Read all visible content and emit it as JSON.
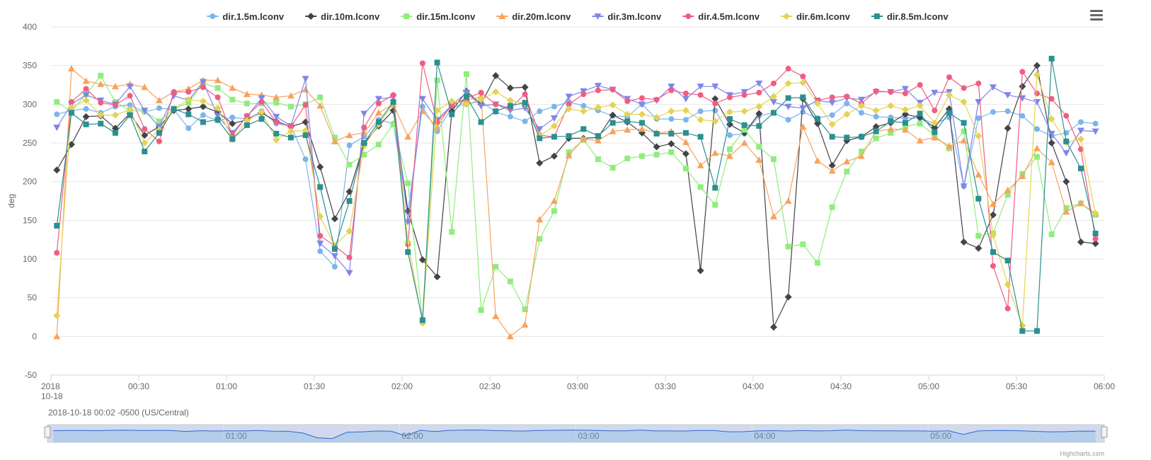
{
  "chart_data": {
    "type": "line",
    "title": "",
    "xlabel": "",
    "ylabel": "deg",
    "ylim": [
      -50,
      400
    ],
    "yticks": [
      -50,
      0,
      50,
      100,
      150,
      200,
      250,
      300,
      350,
      400
    ],
    "grid": true,
    "legend_position": "top-center",
    "x_start": "2018-10-18 00:00",
    "x_end": "2018-10-18 06:00",
    "x_ticks": [
      {
        "t": "00:00",
        "label": "2018",
        "label2": "10-18"
      },
      {
        "t": "00:30",
        "label": "00:30"
      },
      {
        "t": "01:00",
        "label": "01:00"
      },
      {
        "t": "01:30",
        "label": "01:30"
      },
      {
        "t": "02:00",
        "label": "02:00"
      },
      {
        "t": "02:30",
        "label": "02:30"
      },
      {
        "t": "03:00",
        "label": "03:00"
      },
      {
        "t": "03:30",
        "label": "03:30"
      },
      {
        "t": "04:00",
        "label": "04:00"
      },
      {
        "t": "04:30",
        "label": "04:30"
      },
      {
        "t": "05:00",
        "label": "05:00"
      },
      {
        "t": "05:30",
        "label": "05:30"
      },
      {
        "t": "06:00",
        "label": "06:00"
      }
    ],
    "x": [
      "00:02",
      "00:07",
      "00:12",
      "00:17",
      "00:22",
      "00:27",
      "00:32",
      "00:37",
      "00:42",
      "00:47",
      "00:52",
      "00:57",
      "01:02",
      "01:07",
      "01:12",
      "01:17",
      "01:22",
      "01:27",
      "01:32",
      "01:37",
      "01:42",
      "01:47",
      "01:52",
      "01:57",
      "02:02",
      "02:07",
      "02:12",
      "02:17",
      "02:22",
      "02:27",
      "02:32",
      "02:37",
      "02:42",
      "02:47",
      "02:52",
      "02:57",
      "03:02",
      "03:07",
      "03:12",
      "03:17",
      "03:22",
      "03:27",
      "03:32",
      "03:37",
      "03:42",
      "03:47",
      "03:52",
      "03:57",
      "04:02",
      "04:07",
      "04:12",
      "04:17",
      "04:22",
      "04:27",
      "04:32",
      "04:37",
      "04:42",
      "04:47",
      "04:52",
      "04:57",
      "05:02",
      "05:07",
      "05:12",
      "05:17",
      "05:22",
      "05:27",
      "05:32",
      "05:37",
      "05:42",
      "05:47",
      "05:52",
      "05:57"
    ],
    "series": [
      {
        "name": "dir.1.5m.lconv",
        "color": "#7cb5ec",
        "marker": "circle",
        "values": [
          287,
          292,
          294,
          289,
          297,
          299,
          290,
          295,
          293,
          269,
          286,
          279,
          283,
          281,
          291,
          275,
          272,
          229,
          110,
          90,
          247,
          258,
          280,
          275,
          162,
          297,
          265,
          296,
          300,
          304,
          290,
          284,
          278,
          291,
          297,
          303,
          298,
          292,
          285,
          284,
          300,
          281,
          281,
          280,
          291,
          292,
          260,
          262,
          285,
          289,
          280,
          290,
          282,
          286,
          301,
          289,
          284,
          283,
          282,
          282,
          275,
          283,
          194,
          282,
          290,
          291,
          285,
          268,
          259,
          263,
          277,
          275
        ]
      },
      {
        "name": "dir.10m.lconv",
        "color": "#434348",
        "marker": "diamond",
        "values": [
          215,
          248,
          284,
          285,
          269,
          288,
          260,
          271,
          292,
          294,
          297,
          290,
          275,
          280,
          289,
          278,
          271,
          277,
          219,
          152,
          187,
          249,
          272,
          292,
          162,
          99,
          77,
          291,
          317,
          300,
          337,
          321,
          322,
          224,
          233,
          256,
          256,
          257,
          286,
          277,
          263,
          245,
          249,
          236,
          85,
          307,
          274,
          263,
          288,
          12,
          51,
          307,
          275,
          221,
          253,
          258,
          271,
          276,
          287,
          283,
          270,
          294,
          122,
          114,
          157,
          269,
          323,
          350,
          250,
          200,
          122,
          120
        ]
      },
      {
        "name": "dir.15m.lconv",
        "color": "#90ed7d",
        "marker": "square",
        "values": [
          303,
          291,
          313,
          337,
          303,
          292,
          291,
          278,
          294,
          302,
          327,
          321,
          306,
          301,
          301,
          302,
          297,
          300,
          309,
          257,
          222,
          235,
          248,
          274,
          198,
          20,
          331,
          135,
          339,
          34,
          90,
          71,
          35,
          126,
          162,
          238,
          254,
          229,
          218,
          230,
          233,
          235,
          238,
          217,
          193,
          170,
          242,
          267,
          245,
          229,
          116,
          119,
          95,
          167,
          213,
          239,
          256,
          263,
          271,
          275,
          260,
          243,
          265,
          130,
          133,
          183,
          210,
          232,
          132,
          166,
          172,
          157
        ]
      },
      {
        "name": "dir.20m.lconv",
        "color": "#f7a35c",
        "marker": "triangle",
        "values": [
          0,
          346,
          330,
          326,
          323,
          326,
          322,
          305,
          316,
          320,
          331,
          331,
          321,
          313,
          312,
          309,
          311,
          319,
          298,
          252,
          260,
          263,
          289,
          300,
          258,
          291,
          270,
          301,
          305,
          310,
          26,
          0,
          15,
          151,
          175,
          234,
          255,
          253,
          265,
          267,
          268,
          263,
          265,
          251,
          221,
          237,
          233,
          250,
          228,
          155,
          175,
          271,
          227,
          214,
          226,
          233,
          265,
          268,
          267,
          253,
          257,
          246,
          253,
          209,
          171,
          189,
          207,
          243,
          225,
          161,
          172,
          159
        ]
      },
      {
        "name": "dir.3m.lconv",
        "color": "#8085e9",
        "marker": "triangle-down",
        "values": [
          270,
          300,
          312,
          305,
          300,
          323,
          292,
          271,
          311,
          305,
          329,
          285,
          263,
          284,
          308,
          284,
          272,
          333,
          120,
          104,
          82,
          288,
          307,
          309,
          148,
          307,
          280,
          299,
          315,
          298,
          300,
          292,
          295,
          268,
          282,
          310,
          317,
          324,
          319,
          307,
          300,
          305,
          323,
          307,
          323,
          323,
          312,
          316,
          327,
          303,
          297,
          295,
          305,
          302,
          308,
          306,
          316,
          316,
          320,
          302,
          315,
          316,
          194,
          303,
          322,
          312,
          308,
          303,
          262,
          237,
          266,
          265
        ]
      },
      {
        "name": "dir.4.5m.lconv",
        "color": "#f15c80",
        "marker": "circle",
        "values": [
          108,
          303,
          320,
          302,
          299,
          311,
          268,
          252,
          316,
          316,
          322,
          309,
          260,
          285,
          303,
          277,
          271,
          299,
          130,
          117,
          102,
          270,
          301,
          312,
          119,
          353,
          277,
          298,
          308,
          315,
          300,
          295,
          313,
          260,
          258,
          300,
          313,
          318,
          319,
          304,
          308,
          306,
          318,
          314,
          312,
          301,
          309,
          312,
          315,
          327,
          346,
          336,
          305,
          309,
          310,
          301,
          317,
          316,
          314,
          325,
          292,
          335,
          321,
          327,
          91,
          36,
          342,
          314,
          307,
          285,
          242,
          126
        ]
      },
      {
        "name": "dir.6m.lconv",
        "color": "#e4d354",
        "marker": "diamond",
        "values": [
          27,
          296,
          305,
          286,
          286,
          293,
          250,
          267,
          294,
          306,
          304,
          295,
          255,
          279,
          290,
          254,
          265,
          266,
          155,
          117,
          136,
          246,
          274,
          300,
          122,
          17,
          292,
          304,
          300,
          306,
          316,
          305,
          301,
          259,
          272,
          294,
          291,
          296,
          299,
          287,
          287,
          283,
          291,
          292,
          280,
          278,
          290,
          291,
          297,
          310,
          327,
          328,
          301,
          274,
          287,
          298,
          292,
          298,
          293,
          298,
          276,
          312,
          303,
          259,
          131,
          67,
          14,
          338,
          281,
          251,
          255,
          159
        ]
      },
      {
        "name": "dir.8.5m.lconv",
        "color": "#2b908f",
        "marker": "square",
        "values": [
          143,
          289,
          274,
          275,
          263,
          286,
          239,
          263,
          294,
          287,
          277,
          280,
          255,
          273,
          281,
          262,
          257,
          260,
          193,
          113,
          175,
          250,
          277,
          303,
          109,
          21,
          354,
          287,
          310,
          277,
          291,
          298,
          302,
          256,
          258,
          259,
          268,
          259,
          276,
          278,
          276,
          262,
          262,
          263,
          258,
          192,
          281,
          273,
          272,
          289,
          308,
          309,
          281,
          258,
          257,
          258,
          265,
          278,
          276,
          288,
          264,
          289,
          276,
          178,
          109,
          98,
          7,
          7,
          359,
          252,
          217,
          133
        ]
      }
    ],
    "annotation": "2018-10-18 00:02 -0500 (US/Central)",
    "navigator": {
      "labels": [
        "01:00",
        "02:00",
        "03:00",
        "04:00",
        "05:00"
      ]
    },
    "credit": "Highcharts.com",
    "menu_icon": "hamburger-menu-icon"
  }
}
